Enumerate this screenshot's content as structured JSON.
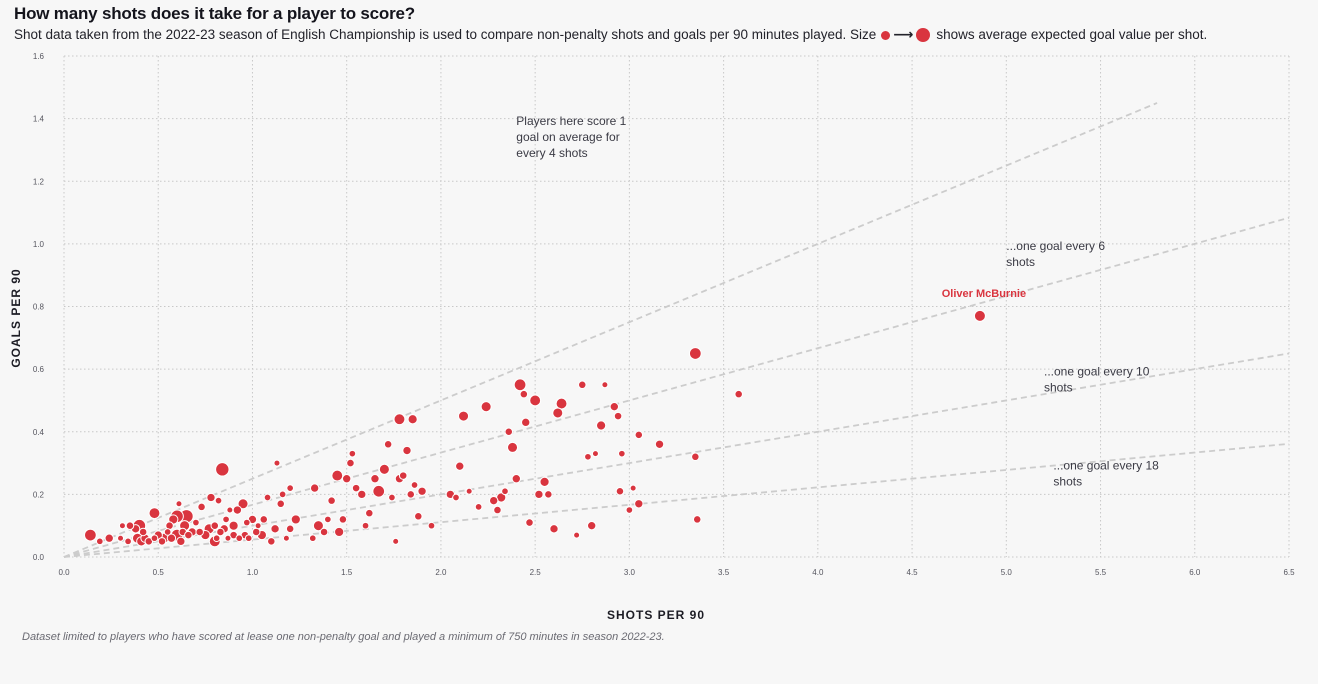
{
  "title": "How many shots does it take for a player to score?",
  "subtitle": {
    "before": "Shot data taken from the 2022-23 season of English Championship is used to compare non-penalty shots and goals per 90 minutes played. Size",
    "arrow": "⟶",
    "after": "shows average expected goal value per shot."
  },
  "footnote": "Dataset limited to players who have scored at lease one non-penalty goal and played a minimum of 750 minutes in season 2022-23.",
  "colors": {
    "point": "#d9353f",
    "guide": "#cccccc",
    "grid": "#c8c8c8",
    "background": "#f7f7f7"
  },
  "chart_data": {
    "type": "scatter",
    "title": "How many shots does it take for a player to score?",
    "xlabel": "SHOTS PER 90",
    "ylabel": "GOALS PER 90",
    "xlim": [
      0,
      6.5
    ],
    "ylim": [
      0,
      1.6
    ],
    "xticks": [
      "0.0",
      "0.5",
      "1.0",
      "1.5",
      "2.0",
      "2.5",
      "3.0",
      "3.5",
      "4.0",
      "4.5",
      "5.0",
      "5.5",
      "6.0",
      "6.5"
    ],
    "yticks": [
      "0.0",
      "0.2",
      "0.4",
      "0.6",
      "0.8",
      "1.0",
      "1.2",
      "1.4",
      "1.6"
    ],
    "size_encoding": "average expected goal value per shot",
    "guide_lines": [
      {
        "rate": 0.25,
        "x_end": 5.8,
        "label": "Players here score 1 goal on average for every 4 shots"
      },
      {
        "rate": 0.1667,
        "x_end": 6.5,
        "label": "...one goal every 6 shots"
      },
      {
        "rate": 0.1,
        "x_end": 6.5,
        "label": "...one goal every 10 shots"
      },
      {
        "rate": 0.0556,
        "x_end": 6.5,
        "label": "...one goal every 18 shots"
      }
    ],
    "highlight": {
      "name": "Oliver McBurnie",
      "x": 4.86,
      "y": 0.77
    },
    "points": [
      [
        0.14,
        0.07,
        0.14
      ],
      [
        0.19,
        0.05,
        0.08
      ],
      [
        0.24,
        0.06,
        0.1
      ],
      [
        0.3,
        0.06,
        0.07
      ],
      [
        0.31,
        0.1,
        0.07
      ],
      [
        0.34,
        0.05,
        0.08
      ],
      [
        0.35,
        0.1,
        0.09
      ],
      [
        0.38,
        0.09,
        0.1
      ],
      [
        0.39,
        0.06,
        0.12
      ],
      [
        0.4,
        0.1,
        0.15
      ],
      [
        0.41,
        0.05,
        0.11
      ],
      [
        0.42,
        0.08,
        0.09
      ],
      [
        0.43,
        0.06,
        0.1
      ],
      [
        0.45,
        0.05,
        0.09
      ],
      [
        0.48,
        0.06,
        0.08
      ],
      [
        0.48,
        0.14,
        0.13
      ],
      [
        0.5,
        0.07,
        0.1
      ],
      [
        0.52,
        0.05,
        0.09
      ],
      [
        0.53,
        0.06,
        0.12
      ],
      [
        0.55,
        0.08,
        0.08
      ],
      [
        0.56,
        0.1,
        0.09
      ],
      [
        0.57,
        0.06,
        0.1
      ],
      [
        0.58,
        0.12,
        0.11
      ],
      [
        0.6,
        0.07,
        0.14
      ],
      [
        0.6,
        0.13,
        0.15
      ],
      [
        0.61,
        0.17,
        0.07
      ],
      [
        0.62,
        0.05,
        0.1
      ],
      [
        0.63,
        0.08,
        0.09
      ],
      [
        0.64,
        0.1,
        0.12
      ],
      [
        0.65,
        0.13,
        0.16
      ],
      [
        0.66,
        0.07,
        0.09
      ],
      [
        0.68,
        0.08,
        0.1
      ],
      [
        0.7,
        0.11,
        0.08
      ],
      [
        0.72,
        0.08,
        0.09
      ],
      [
        0.73,
        0.16,
        0.09
      ],
      [
        0.75,
        0.07,
        0.11
      ],
      [
        0.77,
        0.09,
        0.12
      ],
      [
        0.78,
        0.19,
        0.1
      ],
      [
        0.8,
        0.05,
        0.13
      ],
      [
        0.8,
        0.1,
        0.09
      ],
      [
        0.81,
        0.06,
        0.08
      ],
      [
        0.82,
        0.18,
        0.08
      ],
      [
        0.83,
        0.08,
        0.09
      ],
      [
        0.84,
        0.28,
        0.16
      ],
      [
        0.85,
        0.09,
        0.1
      ],
      [
        0.86,
        0.12,
        0.08
      ],
      [
        0.87,
        0.06,
        0.07
      ],
      [
        0.88,
        0.15,
        0.07
      ],
      [
        0.9,
        0.07,
        0.09
      ],
      [
        0.9,
        0.1,
        0.11
      ],
      [
        0.92,
        0.15,
        0.1
      ],
      [
        0.93,
        0.06,
        0.08
      ],
      [
        0.95,
        0.17,
        0.12
      ],
      [
        0.96,
        0.07,
        0.09
      ],
      [
        0.97,
        0.11,
        0.08
      ],
      [
        0.98,
        0.06,
        0.08
      ],
      [
        1.0,
        0.12,
        0.1
      ],
      [
        1.02,
        0.08,
        0.09
      ],
      [
        1.03,
        0.1,
        0.07
      ],
      [
        1.05,
        0.07,
        0.11
      ],
      [
        1.06,
        0.12,
        0.09
      ],
      [
        1.08,
        0.19,
        0.08
      ],
      [
        1.1,
        0.05,
        0.09
      ],
      [
        1.12,
        0.09,
        0.1
      ],
      [
        1.13,
        0.3,
        0.07
      ],
      [
        1.15,
        0.17,
        0.09
      ],
      [
        1.16,
        0.2,
        0.08
      ],
      [
        1.18,
        0.06,
        0.07
      ],
      [
        1.2,
        0.22,
        0.08
      ],
      [
        1.2,
        0.09,
        0.09
      ],
      [
        1.23,
        0.12,
        0.11
      ],
      [
        1.32,
        0.06,
        0.08
      ],
      [
        1.33,
        0.22,
        0.1
      ],
      [
        1.35,
        0.1,
        0.12
      ],
      [
        1.38,
        0.08,
        0.09
      ],
      [
        1.4,
        0.12,
        0.08
      ],
      [
        1.42,
        0.18,
        0.09
      ],
      [
        1.45,
        0.26,
        0.13
      ],
      [
        1.46,
        0.08,
        0.11
      ],
      [
        1.48,
        0.12,
        0.09
      ],
      [
        1.5,
        0.25,
        0.1
      ],
      [
        1.52,
        0.3,
        0.09
      ],
      [
        1.53,
        0.33,
        0.08
      ],
      [
        1.55,
        0.22,
        0.09
      ],
      [
        1.58,
        0.2,
        0.1
      ],
      [
        1.6,
        0.1,
        0.08
      ],
      [
        1.62,
        0.14,
        0.09
      ],
      [
        1.65,
        0.25,
        0.1
      ],
      [
        1.67,
        0.21,
        0.14
      ],
      [
        1.7,
        0.28,
        0.12
      ],
      [
        1.72,
        0.36,
        0.09
      ],
      [
        1.74,
        0.19,
        0.08
      ],
      [
        1.76,
        0.05,
        0.07
      ],
      [
        1.78,
        0.25,
        0.1
      ],
      [
        1.78,
        0.44,
        0.13
      ],
      [
        1.8,
        0.26,
        0.09
      ],
      [
        1.82,
        0.34,
        0.1
      ],
      [
        1.84,
        0.2,
        0.09
      ],
      [
        1.85,
        0.44,
        0.11
      ],
      [
        1.86,
        0.23,
        0.08
      ],
      [
        1.88,
        0.13,
        0.09
      ],
      [
        1.9,
        0.21,
        0.1
      ],
      [
        1.95,
        0.1,
        0.08
      ],
      [
        2.05,
        0.2,
        0.1
      ],
      [
        2.08,
        0.19,
        0.08
      ],
      [
        2.1,
        0.29,
        0.1
      ],
      [
        2.12,
        0.45,
        0.12
      ],
      [
        2.15,
        0.21,
        0.07
      ],
      [
        2.2,
        0.16,
        0.08
      ],
      [
        2.24,
        0.48,
        0.12
      ],
      [
        2.28,
        0.18,
        0.1
      ],
      [
        2.3,
        0.15,
        0.09
      ],
      [
        2.32,
        0.19,
        0.11
      ],
      [
        2.34,
        0.21,
        0.08
      ],
      [
        2.36,
        0.4,
        0.09
      ],
      [
        2.38,
        0.35,
        0.12
      ],
      [
        2.4,
        0.25,
        0.1
      ],
      [
        2.42,
        0.55,
        0.14
      ],
      [
        2.44,
        0.52,
        0.09
      ],
      [
        2.45,
        0.43,
        0.1
      ],
      [
        2.47,
        0.11,
        0.09
      ],
      [
        2.5,
        0.5,
        0.13
      ],
      [
        2.52,
        0.2,
        0.1
      ],
      [
        2.55,
        0.24,
        0.11
      ],
      [
        2.57,
        0.2,
        0.09
      ],
      [
        2.6,
        0.09,
        0.1
      ],
      [
        2.62,
        0.46,
        0.12
      ],
      [
        2.64,
        0.49,
        0.13
      ],
      [
        2.72,
        0.07,
        0.07
      ],
      [
        2.75,
        0.55,
        0.09
      ],
      [
        2.78,
        0.32,
        0.08
      ],
      [
        2.8,
        0.1,
        0.1
      ],
      [
        2.82,
        0.33,
        0.07
      ],
      [
        2.85,
        0.42,
        0.11
      ],
      [
        2.87,
        0.55,
        0.07
      ],
      [
        2.92,
        0.48,
        0.1
      ],
      [
        2.94,
        0.45,
        0.09
      ],
      [
        2.95,
        0.21,
        0.09
      ],
      [
        2.96,
        0.33,
        0.08
      ],
      [
        3.0,
        0.15,
        0.08
      ],
      [
        3.02,
        0.22,
        0.07
      ],
      [
        3.05,
        0.39,
        0.09
      ],
      [
        3.05,
        0.17,
        0.1
      ],
      [
        3.16,
        0.36,
        0.1
      ],
      [
        3.35,
        0.65,
        0.14
      ],
      [
        3.35,
        0.32,
        0.09
      ],
      [
        3.36,
        0.12,
        0.09
      ],
      [
        3.58,
        0.52,
        0.09
      ]
    ]
  }
}
